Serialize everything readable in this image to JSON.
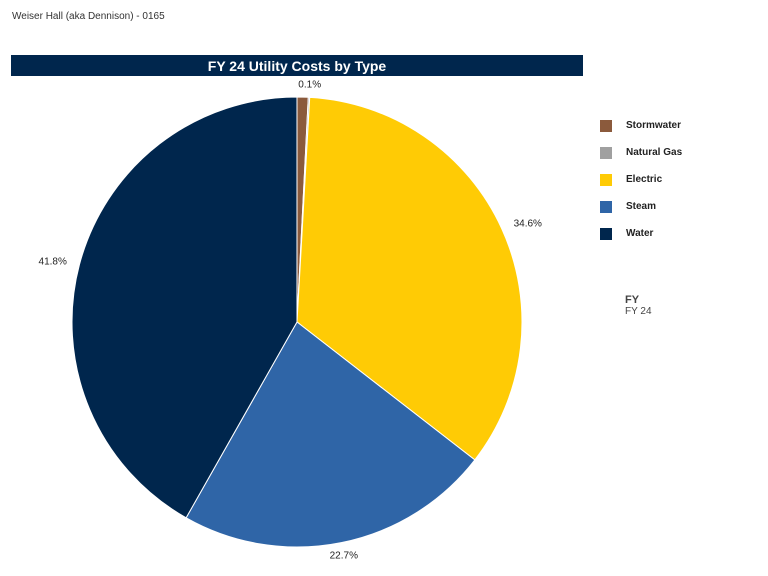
{
  "page": {
    "title": "Weiser Hall (aka Dennison) - 0165"
  },
  "colors": {
    "header_bg": "#00264d",
    "Stormwater": "#8b5a3c",
    "Natural Gas": "#a0a0a0",
    "Electric": "#ffcb05",
    "Steam": "#2f65a7",
    "Water": "#00264d"
  },
  "filter": {
    "label": "FY",
    "value": "FY 24"
  },
  "chart_data": {
    "type": "pie",
    "title": "FY 24 Utility Costs by Type",
    "legend_position": "right",
    "slices": [
      {
        "name": "Stormwater",
        "value": 0.8,
        "label": "",
        "color": "#8b5a3c"
      },
      {
        "name": "Natural Gas",
        "value": 0.1,
        "label": "0.1%",
        "color": "#a0a0a0"
      },
      {
        "name": "Electric",
        "value": 34.6,
        "label": "34.6%",
        "color": "#ffcb05"
      },
      {
        "name": "Steam",
        "value": 22.7,
        "label": "22.7%",
        "color": "#2f65a7"
      },
      {
        "name": "Water",
        "value": 41.8,
        "label": "41.8%",
        "color": "#00264d"
      }
    ]
  }
}
